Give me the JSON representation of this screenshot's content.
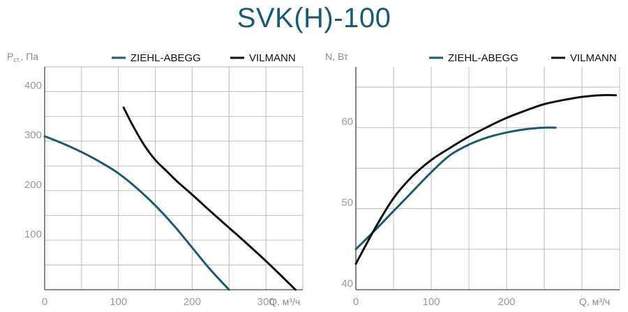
{
  "title": "SVK(H)-100",
  "legend_colors": {
    "ziehl": "#1c5a73",
    "vilmann": "#111111"
  },
  "chart_data": [
    {
      "type": "line",
      "ylabel_main": "P",
      "ylabel_sub": "ст.",
      "ylabel_unit": ", Па",
      "xlabel": "Q, м³/ч",
      "xlim": [
        0,
        350
      ],
      "ylim": [
        0,
        450
      ],
      "xticks": [
        0,
        100,
        200,
        300
      ],
      "yticks": [
        100,
        200,
        300,
        400
      ],
      "grid": true,
      "legend_position": "top-right",
      "series": [
        {
          "name": "ZIEHL-ABEGG",
          "color": "#1c5a73",
          "points": [
            [
              0,
              310
            ],
            [
              25,
              295
            ],
            [
              50,
              278
            ],
            [
              75,
              258
            ],
            [
              100,
              235
            ],
            [
              125,
              205
            ],
            [
              150,
              170
            ],
            [
              175,
              130
            ],
            [
              200,
              85
            ],
            [
              225,
              40
            ],
            [
              250,
              0
            ]
          ]
        },
        {
          "name": "VILMANN",
          "color": "#111111",
          "points": [
            [
              107,
              368
            ],
            [
              120,
              330
            ],
            [
              135,
              292
            ],
            [
              150,
              262
            ],
            [
              165,
              240
            ],
            [
              180,
              218
            ],
            [
              200,
              192
            ],
            [
              225,
              158
            ],
            [
              250,
              125
            ],
            [
              275,
              92
            ],
            [
              300,
              58
            ],
            [
              325,
              22
            ],
            [
              340,
              0
            ]
          ]
        }
      ]
    },
    {
      "type": "line",
      "ylabel_main": "N, Вт",
      "xlabel": "Q, м³/ч",
      "xlim": [
        0,
        350
      ],
      "ylim": [
        40,
        67.5
      ],
      "xticks": [
        0,
        100,
        200
      ],
      "yticks": [
        40,
        50,
        60
      ],
      "grid": true,
      "legend_position": "top-right",
      "series": [
        {
          "name": "ZIEHL-ABEGG",
          "color": "#1c5a73",
          "points": [
            [
              0,
              45
            ],
            [
              25,
              47.3
            ],
            [
              50,
              49.7
            ],
            [
              75,
              52.1
            ],
            [
              100,
              54.5
            ],
            [
              125,
              56.6
            ],
            [
              150,
              57.9
            ],
            [
              175,
              58.8
            ],
            [
              200,
              59.4
            ],
            [
              225,
              59.8
            ],
            [
              250,
              60
            ],
            [
              265,
              60
            ]
          ]
        },
        {
          "name": "VILMANN",
          "color": "#111111",
          "points": [
            [
              0,
              43.2
            ],
            [
              25,
              47.5
            ],
            [
              50,
              51.3
            ],
            [
              75,
              54.0
            ],
            [
              100,
              56.0
            ],
            [
              125,
              57.5
            ],
            [
              150,
              58.9
            ],
            [
              175,
              60.1
            ],
            [
              200,
              61.2
            ],
            [
              225,
              62.1
            ],
            [
              250,
              62.9
            ],
            [
              275,
              63.4
            ],
            [
              300,
              63.8
            ],
            [
              325,
              64.0
            ],
            [
              345,
              64.0
            ]
          ]
        }
      ]
    }
  ]
}
